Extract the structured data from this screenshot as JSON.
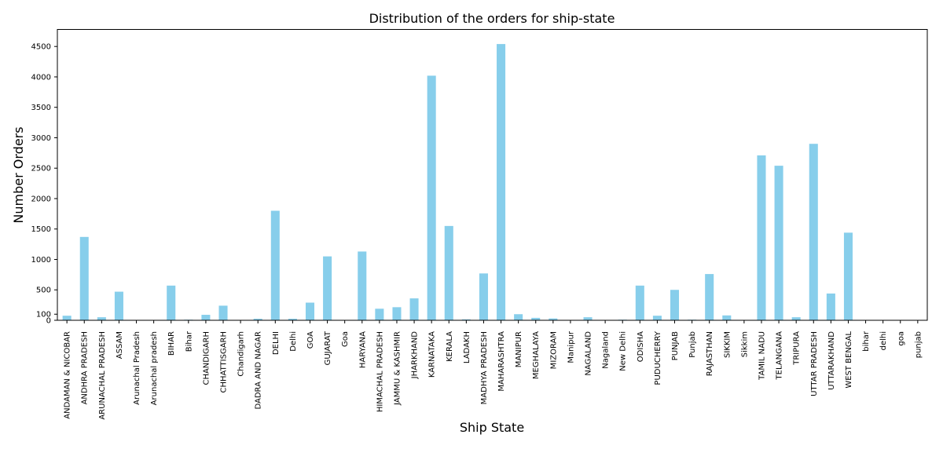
{
  "chart_data": {
    "type": "bar",
    "title": "Distribution of the orders for ship-state",
    "xlabel": "Ship State",
    "ylabel": "Number Orders",
    "ylim": [
      0,
      4780
    ],
    "yticks": [
      0,
      100,
      500,
      1000,
      1500,
      2000,
      2500,
      3000,
      3500,
      4000,
      4500
    ],
    "bar_color": "#87CEEB",
    "grid": false,
    "categories": [
      "ANDAMAN & NICOBAR",
      "ANDHRA PRADESH",
      "ARUNACHAL PRADESH",
      "ASSAM",
      "Arunachal Pradesh",
      "Arunachal pradesh",
      "BIHAR",
      "Bihar",
      "CHANDIGARH",
      "CHHATTISGARH",
      "Chandigarh",
      "DADRA AND NAGAR",
      "DELHI",
      "Delhi",
      "GOA",
      "GUJARAT",
      "Goa",
      "HARYANA",
      "HIMACHAL PRADESH",
      "JAMMU & KASHMIR",
      "JHARKHAND",
      "KARNATAKA",
      "KERALA",
      "LADAKH",
      "MADHYA PRADESH",
      "MAHARASHTRA",
      "MANIPUR",
      "MEGHALAYA",
      "MIZORAM",
      "Manipur",
      "NAGALAND",
      "Nagaland",
      "New Delhi",
      "ODISHA",
      "PUDUCHERRY",
      "PUNJAB",
      "Punjab",
      "RAJASTHAN",
      "SIKKIM",
      "Sikkim",
      "TAMIL NADU",
      "TELANGANA",
      "TRIPURA",
      "UTTAR PRADESH",
      "UTTARAKHAND",
      "WEST BENGAL",
      "bihar",
      "delhi",
      "goa",
      "punjab"
    ],
    "values": [
      75,
      1370,
      50,
      470,
      3,
      3,
      570,
      10,
      90,
      240,
      3,
      25,
      1800,
      25,
      290,
      1050,
      3,
      1130,
      190,
      215,
      360,
      4020,
      1550,
      15,
      770,
      4540,
      100,
      40,
      30,
      5,
      50,
      3,
      10,
      570,
      75,
      500,
      10,
      760,
      80,
      5,
      2710,
      2540,
      50,
      2900,
      440,
      1440,
      3,
      3,
      3,
      3
    ]
  }
}
